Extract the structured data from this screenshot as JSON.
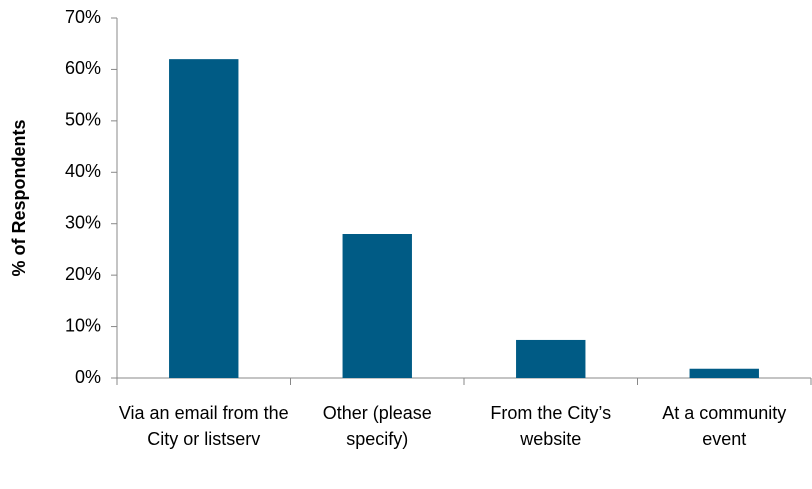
{
  "chart_data": {
    "type": "bar",
    "y_axis_label": "% of Respondents",
    "categories": [
      "Via an email from the City or listserv",
      "Other (please specify)",
      "From the City’s website",
      "At a community event"
    ],
    "values": [
      62,
      28,
      7.4,
      1.8
    ],
    "color": "#005b85",
    "ylim": [
      0,
      70
    ],
    "yticks": [
      {
        "value": 0,
        "label": "0%"
      },
      {
        "value": 10,
        "label": "10%"
      },
      {
        "value": 20,
        "label": "20%"
      },
      {
        "value": 30,
        "label": "30%"
      },
      {
        "value": 40,
        "label": "40%"
      },
      {
        "value": 50,
        "label": "50%"
      },
      {
        "value": 60,
        "label": "60%"
      },
      {
        "value": 70,
        "label": "70%"
      }
    ],
    "grid": false
  }
}
